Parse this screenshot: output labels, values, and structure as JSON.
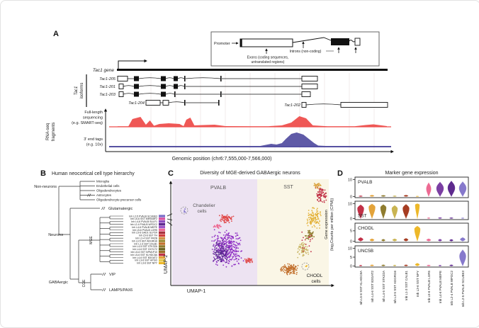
{
  "panel_a": {
    "label": "A",
    "inset": {
      "promoter": "Promoter",
      "introns": "Introns (non-coding)",
      "exons_line1": "Exons (coding sequences,",
      "exons_line2": "untranslated regions)"
    },
    "gene_label": "Tac1 gene",
    "isoforms_group_label": [
      "Tac1",
      "isoforms"
    ],
    "isoforms": [
      "Tac1-205",
      "Tac1-201",
      "Tac1-203",
      "Tac1-204",
      "Tac1-202"
    ],
    "rnaseq_group_label": [
      "RNA-seq",
      "fragments"
    ],
    "track1_label": [
      "Full-length",
      "sequencing",
      "(e.g. SMART-seq)"
    ],
    "track2_label": [
      "3' end tags",
      "(e.g. 10x)"
    ],
    "xaxis_label": "Genomic position (chr6:7,555,000-7,566,000)"
  },
  "panel_b": {
    "label": "B",
    "title": "Human neocortical cell type hierarchy",
    "non_neurons_label": "Non-neurons",
    "neurons_label": "Neurons",
    "non_neuron_types": [
      "Microglia",
      "Endothelial cells",
      "Oligodendrocytes",
      "Astrocytes",
      "Oligodendrocyte precursor cells"
    ],
    "glutamatergic_label": "Glutamatergic",
    "gabaergic_label": "GABAergic",
    "mge_label": "MGE",
    "cge_label": "CGE",
    "vip_label": "VIP",
    "lamp5_label": "LAMP5/PAX6",
    "mge_types": [
      {
        "name": "Inh L2-5 PVALB SCUBE3",
        "color": "#7a6fc8"
      },
      {
        "name": "Inh L5-6 SST MIR548F2",
        "color": "#d94f9e"
      },
      {
        "name": "Inh L4-6 PVALB SULF1",
        "color": "#8b4bc0"
      },
      {
        "name": "Inh L2-4 PVALB WFDC2",
        "color": "#5e2a8e"
      },
      {
        "name": "Inh L4-6 PVALB MEPE",
        "color": "#a055c8"
      },
      {
        "name": "Inh L5-6 PVALB LGR5",
        "color": "#ed6a93"
      },
      {
        "name": "Inh L5-6 GAD1 GLP1R",
        "color": "#a8333f"
      },
      {
        "name": "Inh L5-6 SST TH",
        "color": "#d13f3f"
      },
      {
        "name": "Inh L2-4 SST FRZB",
        "color": "#d28f45"
      },
      {
        "name": "Inh L3-5 SST ADGRG6",
        "color": "#9c8a33"
      },
      {
        "name": "Inh L1-3 SST CALB1",
        "color": "#c2702d"
      },
      {
        "name": "Inh L4-5 SST STK32A",
        "color": "#8f7c2f"
      },
      {
        "name": "Inh L4-6 SST GXYLT2",
        "color": "#6b6320"
      },
      {
        "name": "Inh L5-6 SST NPM1P10",
        "color": "#9c6f2a"
      },
      {
        "name": "Inh L5-6 SST KLHDC8A",
        "color": "#c13147"
      },
      {
        "name": "Inh L4-6 SST B3GAT2",
        "color": "#e3a33a"
      },
      {
        "name": "Inh L3-6 SST HPGD",
        "color": "#e3c94f"
      },
      {
        "name": "Inh L3-6 SST NPY",
        "color": "#edb829"
      }
    ]
  },
  "panel_c": {
    "label": "C",
    "title": "Diversity of MGE-derived GABAergic neurons",
    "pvalb_region_label": "PVALB",
    "sst_region_label": "SST",
    "chandelier_line1": "Chandelier",
    "chandelier_line2": "cells",
    "chodl_line1": "CHODL",
    "chodl_line2": "cells",
    "xaxis_label": "UMAP-1",
    "yaxis_label": "UMAP-2",
    "pvalb_bg": "#ede3f2",
    "sst_bg": "#faf6e6"
  },
  "panel_d": {
    "label": "D",
    "title": "Marker gene expression",
    "ylabel_line1": "Gene expression",
    "ylabel_line2": "(log₂Counts per million (CPM))"
  },
  "chart_data": [
    {
      "type": "area",
      "name": "rnaseq-read-coverage",
      "xlabel": "Genomic position (chr6:7,555,000-7,566,000)",
      "series": [
        {
          "name": "Full-length sequencing (e.g. SMART-seq)",
          "color": "#ee4f4d",
          "points": [
            [
              0,
              0.8
            ],
            [
              0.04,
              0.8
            ],
            [
              0.055,
              11
            ],
            [
              0.085,
              14
            ],
            [
              0.105,
              3
            ],
            [
              0.12,
              9
            ],
            [
              0.135,
              1.5
            ],
            [
              0.155,
              4
            ],
            [
              0.19,
              5
            ],
            [
              0.23,
              4
            ],
            [
              0.245,
              1
            ],
            [
              0.255,
              10
            ],
            [
              0.27,
              13
            ],
            [
              0.285,
              2
            ],
            [
              0.32,
              2.5
            ],
            [
              0.36,
              3
            ],
            [
              0.4,
              1
            ],
            [
              0.5,
              0.8
            ],
            [
              0.56,
              0.8
            ],
            [
              0.61,
              2
            ],
            [
              0.645,
              6
            ],
            [
              0.675,
              15
            ],
            [
              0.7,
              12
            ],
            [
              0.725,
              2
            ],
            [
              0.78,
              0.8
            ],
            [
              0.88,
              0.8
            ],
            [
              0.92,
              2.5
            ],
            [
              0.95,
              3.5
            ],
            [
              0.98,
              2
            ],
            [
              1,
              1
            ]
          ]
        },
        {
          "name": "3' end tags (e.g. 10x)",
          "color": "#5651a2",
          "points": [
            [
              0,
              0.5
            ],
            [
              0.48,
              0.5
            ],
            [
              0.53,
              1
            ],
            [
              0.57,
              4
            ],
            [
              0.59,
              3
            ],
            [
              0.61,
              5
            ],
            [
              0.625,
              11
            ],
            [
              0.645,
              18
            ],
            [
              0.665,
              20
            ],
            [
              0.69,
              17
            ],
            [
              0.71,
              11
            ],
            [
              0.73,
              5
            ],
            [
              0.745,
              1.5
            ],
            [
              0.8,
              0.5
            ],
            [
              1,
              0.5
            ]
          ]
        }
      ]
    },
    {
      "type": "scatter",
      "name": "umap-mge-gabaergic-neurons",
      "title": "Diversity of MGE-derived GABAergic neurons",
      "xlabel": "UMAP-1",
      "ylabel": "UMAP-2",
      "annotations": [
        "Chandelier cells",
        "CHODL cells"
      ],
      "clusters": [
        {
          "name": "pvalb-chandelier-cells",
          "color": "#8679cc",
          "cx": 0.081,
          "cy": 0.297,
          "rx": 0.018,
          "ry": 0.022,
          "n": 6
        },
        {
          "name": "pvalb-main",
          "color": "#8f2fc4",
          "cx": 0.353,
          "cy": 0.66,
          "rx": 0.105,
          "ry": 0.185,
          "n": 360
        },
        {
          "name": "pvalb-dark",
          "color": "#5c2d91",
          "cx": 0.31,
          "cy": 0.7,
          "rx": 0.055,
          "ry": 0.115,
          "n": 120
        },
        {
          "name": "pvalb-top-red",
          "color": "#e04848",
          "cx": 0.344,
          "cy": 0.375,
          "rx": 0.05,
          "ry": 0.042,
          "n": 70
        },
        {
          "name": "pvalb-pink",
          "color": "#ed6a93",
          "cx": 0.29,
          "cy": 0.453,
          "rx": 0.028,
          "ry": 0.03,
          "n": 25
        },
        {
          "name": "pvalb-right-red",
          "color": "#e05050",
          "cx": 0.489,
          "cy": 0.777,
          "rx": 0.035,
          "ry": 0.028,
          "n": 40
        },
        {
          "name": "sst-crimson-top",
          "color": "#c13147",
          "cx": 0.95,
          "cy": 0.148,
          "rx": 0.038,
          "ry": 0.09,
          "n": 80
        },
        {
          "name": "sst-gold-top",
          "color": "#d9a13a",
          "cx": 0.932,
          "cy": 0.062,
          "rx": 0.03,
          "ry": 0.035,
          "n": 25
        },
        {
          "name": "sst-gold",
          "color": "#e3b23a",
          "cx": 0.905,
          "cy": 0.372,
          "rx": 0.048,
          "ry": 0.11,
          "n": 110
        },
        {
          "name": "sst-olive",
          "color": "#8f7c2f",
          "cx": 0.878,
          "cy": 0.534,
          "rx": 0.03,
          "ry": 0.05,
          "n": 40
        },
        {
          "name": "sst-khaki",
          "color": "#cbb86a",
          "cx": 0.837,
          "cy": 0.676,
          "rx": 0.04,
          "ry": 0.08,
          "n": 70
        },
        {
          "name": "sst-red-sparse",
          "color": "#c13147",
          "cx": 0.86,
          "cy": 0.59,
          "rx": 0.06,
          "ry": 0.12,
          "n": 16
        },
        {
          "name": "sst-orange-chodl-region",
          "color": "#c2702d",
          "cx": 0.751,
          "cy": 0.858,
          "rx": 0.065,
          "ry": 0.055,
          "n": 130
        },
        {
          "name": "sst-chodl-dots",
          "color": "#edb829",
          "cx": 0.85,
          "cy": 0.828,
          "rx": 0.012,
          "ry": 0.012,
          "n": 4
        }
      ]
    },
    {
      "type": "violin",
      "name": "marker-gene-expression",
      "title": "Marker gene expression",
      "ylabel": "Gene expression (log₂Counts per million (CPM))",
      "categories": [
        "Inh L5-6 SST KLHDC8A",
        "Inh L4-6 SST B3GAT2",
        "Inh L4-5 SST STK32A",
        "Inh L3-5 SST ADGRG6",
        "Inh L1-3 SST CALB1",
        "Inh L3-6 SST NPY",
        "Inh L5-6 PVALB LGR5",
        "Inh L4-6 PVALB MEPE",
        "Inh L2-4 PVALB WFDC2",
        "Inh L2-5 PVALB SCUBE3"
      ],
      "category_colors": [
        "#c13147",
        "#e3a33a",
        "#8f7c2f",
        "#c9b452",
        "#a63d22",
        "#edb829",
        "#ed6a93",
        "#7b3fa3",
        "#5e2a8e",
        "#8679cc"
      ],
      "rows": [
        {
          "gene": "PVALB",
          "ymax": 10,
          "ticks": [
            10,
            0
          ],
          "values": [
            0.5,
            0.9,
            0.8,
            0.5,
            0.9,
            0.3,
            8.2,
            8.6,
            9.2,
            8.8
          ],
          "widths": [
            5,
            6,
            6,
            5,
            6,
            4,
            6.5,
            10,
            10,
            10
          ],
          "peaks": [
            0.45,
            0.45,
            0.45,
            0.45,
            0.45,
            0.4,
            0.55,
            0.55,
            0.55,
            0.55
          ]
        },
        {
          "gene": "SST",
          "ymax": 10,
          "ticks": [
            10,
            0
          ],
          "values": [
            9.3,
            9.8,
            9.4,
            8.8,
            9.6,
            10,
            0.6,
            0.7,
            0.6,
            0.5
          ],
          "widths": [
            9,
            9,
            8,
            8,
            9,
            6,
            4,
            5,
            5,
            4
          ],
          "peaks": [
            0.72,
            0.78,
            0.78,
            0.75,
            0.7,
            0.92,
            0.45,
            0.45,
            0.45,
            0.45
          ]
        },
        {
          "gene": "CHODL",
          "ymax": 7.5,
          "ticks": [
            5,
            0
          ],
          "values": [
            1.8,
            1.2,
            1.0,
            1.2,
            1.4,
            7.3,
            1.2,
            1.0,
            0.9,
            1.8
          ],
          "widths": [
            7,
            6,
            5,
            6,
            6,
            8,
            6,
            5,
            5,
            7
          ],
          "peaks": [
            0.45,
            0.45,
            0.45,
            0.45,
            0.45,
            0.8,
            0.45,
            0.45,
            0.45,
            0.45
          ]
        },
        {
          "gene": "UNC5B",
          "ymax": 10,
          "ticks": [
            10,
            5,
            0
          ],
          "values": [
            0.5,
            0.7,
            0.7,
            0.6,
            0.7,
            1.6,
            0.6,
            0.5,
            0.7,
            9.2
          ],
          "widths": [
            4,
            5,
            5,
            4,
            5,
            6,
            5,
            4,
            5,
            9
          ],
          "peaks": [
            0.45,
            0.45,
            0.45,
            0.45,
            0.45,
            0.45,
            0.45,
            0.45,
            0.45,
            0.6
          ]
        }
      ]
    }
  ]
}
